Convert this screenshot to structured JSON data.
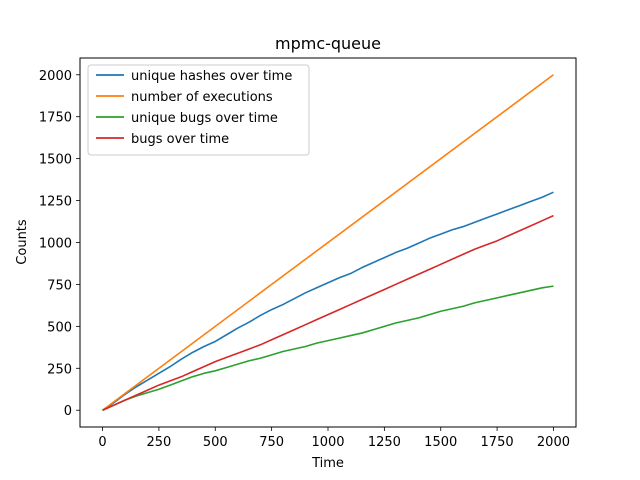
{
  "chart_data": {
    "type": "line",
    "title": "mpmc-queue",
    "xlabel": "Time",
    "ylabel": "Counts",
    "xlim": [
      -100,
      2100
    ],
    "ylim": [
      -100,
      2100
    ],
    "xticks": [
      0,
      250,
      500,
      750,
      1000,
      1250,
      1500,
      1750,
      2000
    ],
    "yticks": [
      0,
      250,
      500,
      750,
      1000,
      1250,
      1500,
      1750,
      2000
    ],
    "grid": false,
    "legend_position": "top-left",
    "series": [
      {
        "name": "unique hashes over time",
        "color": "#1f77b4",
        "x": [
          0,
          50,
          100,
          150,
          200,
          250,
          300,
          350,
          400,
          450,
          500,
          550,
          600,
          650,
          700,
          750,
          800,
          850,
          900,
          950,
          1000,
          1050,
          1100,
          1150,
          1200,
          1250,
          1300,
          1350,
          1400,
          1450,
          1500,
          1550,
          1600,
          1650,
          1700,
          1750,
          1800,
          1850,
          1900,
          1950,
          2000
        ],
        "y": [
          0,
          45,
          95,
          140,
          180,
          220,
          260,
          305,
          345,
          380,
          410,
          450,
          490,
          525,
          565,
          600,
          630,
          665,
          700,
          730,
          760,
          790,
          815,
          850,
          880,
          910,
          940,
          965,
          995,
          1025,
          1050,
          1075,
          1095,
          1120,
          1145,
          1170,
          1195,
          1220,
          1245,
          1270,
          1300
        ]
      },
      {
        "name": "number of executions",
        "color": "#ff7f0e",
        "x": [
          0,
          2000
        ],
        "y": [
          0,
          2000
        ]
      },
      {
        "name": "unique bugs over time",
        "color": "#2ca02c",
        "x": [
          0,
          50,
          100,
          150,
          200,
          250,
          300,
          350,
          400,
          450,
          500,
          550,
          600,
          650,
          700,
          750,
          800,
          850,
          900,
          950,
          1000,
          1050,
          1100,
          1150,
          1200,
          1250,
          1300,
          1350,
          1400,
          1450,
          1500,
          1550,
          1600,
          1650,
          1700,
          1750,
          1800,
          1850,
          1900,
          1950,
          2000
        ],
        "y": [
          0,
          30,
          60,
          85,
          105,
          125,
          150,
          175,
          200,
          220,
          235,
          255,
          275,
          295,
          310,
          330,
          350,
          365,
          380,
          400,
          415,
          430,
          445,
          460,
          480,
          500,
          520,
          535,
          550,
          570,
          590,
          605,
          620,
          640,
          655,
          670,
          685,
          700,
          715,
          730,
          740
        ]
      },
      {
        "name": "bugs over time",
        "color": "#d62728",
        "x": [
          0,
          50,
          100,
          150,
          200,
          250,
          300,
          350,
          400,
          450,
          500,
          550,
          600,
          650,
          700,
          750,
          800,
          850,
          900,
          950,
          1000,
          1050,
          1100,
          1150,
          1200,
          1250,
          1300,
          1350,
          1400,
          1450,
          1500,
          1550,
          1600,
          1650,
          1700,
          1750,
          1800,
          1850,
          1900,
          1950,
          2000
        ],
        "y": [
          0,
          30,
          60,
          90,
          120,
          150,
          175,
          200,
          230,
          260,
          290,
          315,
          340,
          365,
          390,
          420,
          450,
          480,
          510,
          540,
          570,
          600,
          630,
          660,
          690,
          720,
          750,
          780,
          810,
          840,
          870,
          900,
          930,
          960,
          985,
          1010,
          1040,
          1070,
          1100,
          1130,
          1160
        ]
      }
    ]
  }
}
